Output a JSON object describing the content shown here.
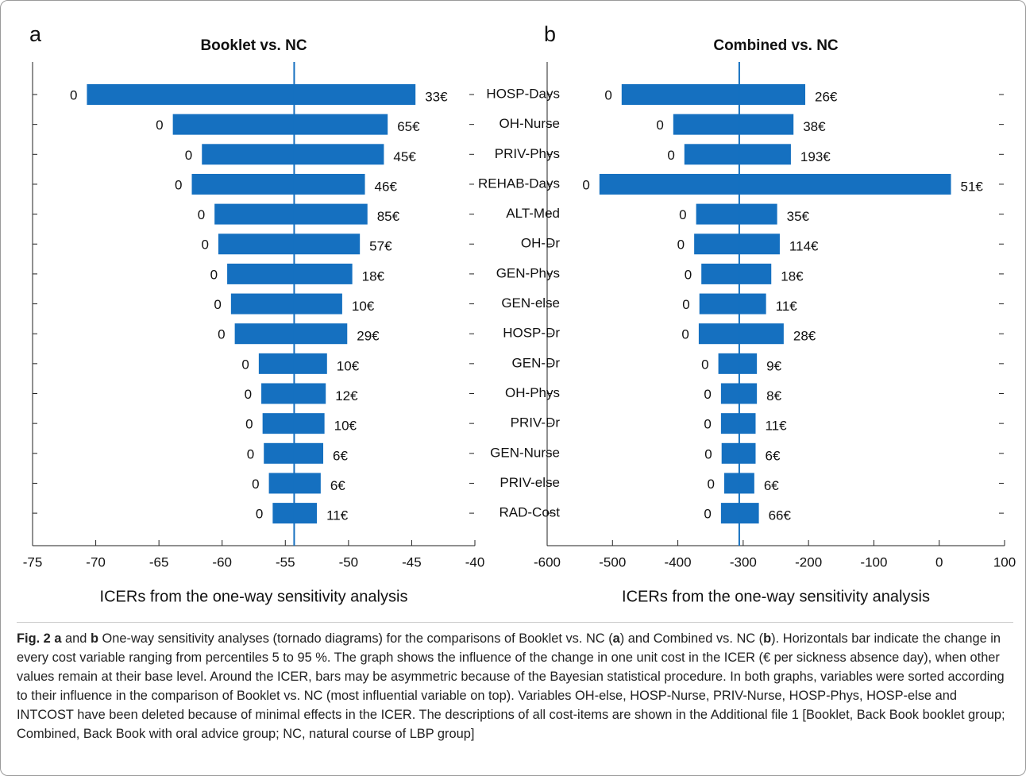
{
  "chart_data": [
    {
      "type": "tornado",
      "panel": "a",
      "title": "Booklet vs. NC",
      "xlabel": "ICERs from the one-way sensitivity analysis",
      "color": "#1570c0",
      "low": [
        -70.7,
        -63.9,
        -61.6,
        -62.4,
        -60.6,
        -60.3,
        -59.6,
        -59.3,
        -59.0,
        -57.1,
        -56.9,
        -56.8,
        -56.7,
        -56.3,
        -56.0
      ],
      "high": [
        -44.7,
        -46.9,
        -47.2,
        -48.7,
        -48.5,
        -49.1,
        -49.7,
        -50.5,
        -50.1,
        -51.7,
        -51.8,
        -51.9,
        -52.0,
        -52.2,
        -52.5
      ],
      "low_labels": [
        "0",
        "0",
        "0",
        "0",
        "0",
        "0",
        "0",
        "0",
        "0",
        "0",
        "0",
        "0",
        "0",
        "0",
        "0"
      ],
      "high_labels": [
        "33€",
        "65€",
        "45€",
        "46€",
        "85€",
        "57€",
        "18€",
        "10€",
        "29€",
        "10€",
        "12€",
        "10€",
        "6€",
        "6€",
        "11€"
      ],
      "base": -54.3,
      "xlim": [
        -75,
        -40
      ],
      "xticks": [
        -75,
        -70,
        -65,
        -60,
        -55,
        -50,
        -45,
        -40
      ]
    },
    {
      "type": "tornado",
      "panel": "b",
      "title": "Combined vs. NC",
      "xlabel": "ICERs from the one-way sensitivity analysis",
      "color": "#1570c0",
      "categories": [
        "HOSP-Days",
        "OH-Nurse",
        "PRIV-Phys",
        "REHAB-Days",
        "ALT-Med",
        "OH-Dr",
        "GEN-Phys",
        "GEN-else",
        "HOSP-Dr",
        "GEN-Dr",
        "OH-Phys",
        "PRIV-Dr",
        "GEN-Nurse",
        "PRIV-else",
        "RAD-Cost"
      ],
      "low": [
        -486,
        -407,
        -390,
        -520,
        -372,
        -375,
        -364,
        -367,
        -368,
        -338,
        -334,
        -334,
        -333,
        -329,
        -334
      ],
      "high": [
        -205,
        -223,
        -227,
        18,
        -248,
        -244,
        -257,
        -265,
        -238,
        -279,
        -279,
        -281,
        -281,
        -283,
        -276
      ],
      "low_labels": [
        "0",
        "0",
        "0",
        "0",
        "0",
        "0",
        "0",
        "0",
        "0",
        "0",
        "0",
        "0",
        "0",
        "0",
        "0"
      ],
      "high_labels": [
        "26€",
        "38€",
        "193€",
        "51€",
        "35€",
        "114€",
        "18€",
        "11€",
        "28€",
        "9€",
        "8€",
        "11€",
        "6€",
        "6€",
        "66€"
      ],
      "base": -306,
      "xlim": [
        -600,
        100
      ],
      "xticks": [
        -600,
        -500,
        -400,
        -300,
        -200,
        -100,
        0,
        100
      ]
    }
  ],
  "caption": [
    {
      "text": "Fig. 2 a",
      "bold": true
    },
    {
      "text": " and "
    },
    {
      "text": "b",
      "bold": true
    },
    {
      "text": " One-way sensitivity analyses (tornado diagrams) for the comparisons of Booklet vs. NC ("
    },
    {
      "text": "a",
      "bold": true
    },
    {
      "text": ") and Combined vs. NC ("
    },
    {
      "text": "b",
      "bold": true
    },
    {
      "text": "). Horizontals bar indicate the change in every cost variable ranging from percentiles 5 to 95 %. The graph shows the influence of the change in one unit cost in the ICER (€ per sickness absence day), when other values remain at their base level. Around the ICER, bars may be asymmetric because of the Bayesian statistical procedure. In both graphs, variables were sorted according to their influence in the comparison of Booklet vs. NC (most influential variable on top). Variables OH-else, HOSP-Nurse, PRIV-Nurse, HOSP-Phys, HOSP-else and INTCOST have been deleted because of minimal effects in the ICER. The descriptions of all cost-items are shown in the Additional file 1 [Booklet, Back Book booklet group; Combined, Back Book with oral advice group; NC, natural course of LBP group]"
    }
  ]
}
